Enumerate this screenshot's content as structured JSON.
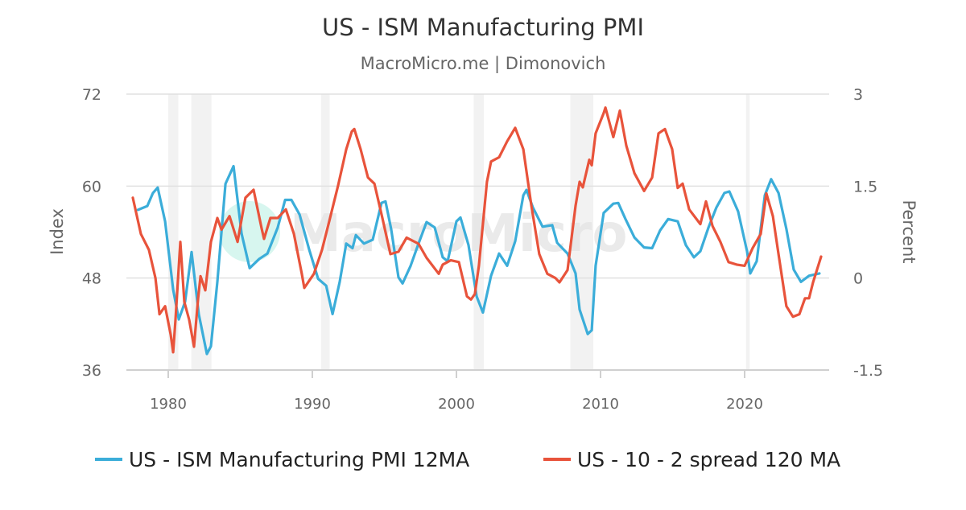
{
  "chart_data": {
    "type": "line",
    "title": "US - ISM Manufacturing PMI",
    "subtitle": "MacroMicro.me | Dimonovich",
    "watermark": "MacroMicro",
    "xlabel": "",
    "ylabel_left": "Index",
    "ylabel_right": "Percent",
    "xlim": [
      1977,
      2026.2
    ],
    "ylim_left": [
      36,
      72
    ],
    "ylim_right": [
      -1.5,
      3
    ],
    "x_ticks": [
      1980,
      1990,
      2000,
      2010,
      2020
    ],
    "y_ticks_left": [
      "36",
      "48",
      "60",
      "72"
    ],
    "y_ticks_right": [
      "-1.5",
      "0",
      "1.5",
      "3"
    ],
    "grid": true,
    "legend_position": "bottom",
    "recession_bands": [
      [
        1980.0,
        1980.7
      ],
      [
        1981.6,
        1983.0
      ],
      [
        1990.6,
        1991.2
      ],
      [
        2001.2,
        2001.9
      ],
      [
        2007.9,
        2009.5
      ],
      [
        2020.1,
        2020.35
      ]
    ],
    "series": [
      {
        "name": "US - ISM Manufacturing PMI 12MA",
        "axis": "left",
        "color": "#3badd9",
        "points": [
          [
            1977.9,
            56.9
          ],
          [
            1978.55,
            57.4
          ],
          [
            1978.94,
            59.1
          ],
          [
            1979.27,
            59.8
          ],
          [
            1979.78,
            55.4
          ],
          [
            1980.34,
            46.5
          ],
          [
            1980.73,
            42.6
          ],
          [
            1981.17,
            44.9
          ],
          [
            1981.62,
            51.4
          ],
          [
            1982.12,
            43.3
          ],
          [
            1982.68,
            38.1
          ],
          [
            1982.96,
            39.1
          ],
          [
            1983.41,
            47.5
          ],
          [
            1983.97,
            60.3
          ],
          [
            1984.53,
            62.6
          ],
          [
            1985.09,
            53.8
          ],
          [
            1985.65,
            49.3
          ],
          [
            1986.32,
            50.5
          ],
          [
            1986.88,
            51.2
          ],
          [
            1987.6,
            54.6
          ],
          [
            1988.11,
            58.2
          ],
          [
            1988.55,
            58.2
          ],
          [
            1989.11,
            56.3
          ],
          [
            1989.78,
            51.7
          ],
          [
            1990.4,
            47.9
          ],
          [
            1990.96,
            47.0
          ],
          [
            1991.4,
            43.3
          ],
          [
            1991.9,
            47.5
          ],
          [
            1992.35,
            52.5
          ],
          [
            1992.79,
            51.9
          ],
          [
            1993.02,
            53.6
          ],
          [
            1993.58,
            52.5
          ],
          [
            1994.19,
            53.0
          ],
          [
            1994.8,
            57.8
          ],
          [
            1995.08,
            58.0
          ],
          [
            1995.47,
            54.4
          ],
          [
            1995.98,
            48.1
          ],
          [
            1996.26,
            47.3
          ],
          [
            1996.82,
            49.6
          ],
          [
            1997.37,
            52.5
          ],
          [
            1997.93,
            55.3
          ],
          [
            1998.49,
            54.6
          ],
          [
            1999.05,
            50.7
          ],
          [
            1999.39,
            50.2
          ],
          [
            2000.0,
            55.4
          ],
          [
            2000.28,
            55.9
          ],
          [
            2000.84,
            52.3
          ],
          [
            2001.4,
            45.6
          ],
          [
            2001.84,
            43.5
          ],
          [
            2002.4,
            48.3
          ],
          [
            2002.96,
            51.2
          ],
          [
            2003.52,
            49.6
          ],
          [
            2004.08,
            52.8
          ],
          [
            2004.64,
            58.8
          ],
          [
            2004.86,
            59.5
          ],
          [
            2005.31,
            57.2
          ],
          [
            2005.98,
            54.7
          ],
          [
            2006.65,
            54.9
          ],
          [
            2006.99,
            52.6
          ],
          [
            2007.71,
            51.2
          ],
          [
            2008.27,
            48.6
          ],
          [
            2008.55,
            43.9
          ],
          [
            2009.11,
            40.7
          ],
          [
            2009.39,
            41.2
          ],
          [
            2009.66,
            49.6
          ],
          [
            2010.22,
            56.5
          ],
          [
            2010.89,
            57.7
          ],
          [
            2011.23,
            57.8
          ],
          [
            2011.73,
            55.7
          ],
          [
            2012.35,
            53.3
          ],
          [
            2013.02,
            52.0
          ],
          [
            2013.58,
            51.9
          ],
          [
            2014.13,
            54.2
          ],
          [
            2014.69,
            55.7
          ],
          [
            2015.36,
            55.4
          ],
          [
            2015.92,
            52.3
          ],
          [
            2016.48,
            50.7
          ],
          [
            2016.93,
            51.5
          ],
          [
            2017.49,
            54.6
          ],
          [
            2018.04,
            57.2
          ],
          [
            2018.6,
            59.1
          ],
          [
            2018.94,
            59.3
          ],
          [
            2019.55,
            56.7
          ],
          [
            2020.17,
            51.5
          ],
          [
            2020.39,
            48.6
          ],
          [
            2020.84,
            50.2
          ],
          [
            2021.4,
            58.8
          ],
          [
            2021.84,
            60.9
          ],
          [
            2022.35,
            59.1
          ],
          [
            2022.9,
            54.4
          ],
          [
            2023.41,
            49.1
          ],
          [
            2023.91,
            47.5
          ],
          [
            2024.47,
            48.3
          ],
          [
            2025.19,
            48.6
          ]
        ]
      },
      {
        "name": "US - 10 - 2 spread 120 MA",
        "axis": "right",
        "color": "#e8533b",
        "points": [
          [
            1977.54,
            1.31
          ],
          [
            1978.1,
            0.72
          ],
          [
            1978.66,
            0.46
          ],
          [
            1979.11,
            0.0
          ],
          [
            1979.39,
            -0.59
          ],
          [
            1979.78,
            -0.46
          ],
          [
            1980.17,
            -0.92
          ],
          [
            1980.34,
            -1.21
          ],
          [
            1980.5,
            -0.7
          ],
          [
            1980.84,
            0.59
          ],
          [
            1981.12,
            -0.39
          ],
          [
            1981.45,
            -0.68
          ],
          [
            1981.79,
            -1.12
          ],
          [
            1982.07,
            -0.33
          ],
          [
            1982.24,
            0.03
          ],
          [
            1982.57,
            -0.2
          ],
          [
            1982.96,
            0.59
          ],
          [
            1983.41,
            0.98
          ],
          [
            1983.69,
            0.79
          ],
          [
            1984.25,
            1.01
          ],
          [
            1984.81,
            0.59
          ],
          [
            1985.36,
            1.31
          ],
          [
            1985.92,
            1.44
          ],
          [
            1986.48,
            0.81
          ],
          [
            1986.65,
            0.64
          ],
          [
            1987.09,
            0.98
          ],
          [
            1987.6,
            0.98
          ],
          [
            1988.16,
            1.12
          ],
          [
            1988.72,
            0.72
          ],
          [
            1989.27,
            0.07
          ],
          [
            1989.44,
            -0.16
          ],
          [
            1990.11,
            0.07
          ],
          [
            1990.67,
            0.46
          ],
          [
            1991.23,
            0.98
          ],
          [
            1991.79,
            1.51
          ],
          [
            1992.35,
            2.1
          ],
          [
            1992.74,
            2.39
          ],
          [
            1992.91,
            2.43
          ],
          [
            1993.35,
            2.1
          ],
          [
            1993.86,
            1.64
          ],
          [
            1994.31,
            1.54
          ],
          [
            1994.86,
            0.98
          ],
          [
            1995.42,
            0.39
          ],
          [
            1995.98,
            0.43
          ],
          [
            1996.54,
            0.66
          ],
          [
            1997.37,
            0.56
          ],
          [
            1997.93,
            0.33
          ],
          [
            1998.77,
            0.07
          ],
          [
            1999.05,
            0.22
          ],
          [
            1999.61,
            0.29
          ],
          [
            2000.17,
            0.26
          ],
          [
            2000.73,
            -0.3
          ],
          [
            2001.01,
            -0.35
          ],
          [
            2001.28,
            -0.26
          ],
          [
            2001.56,
            0.2
          ],
          [
            2002.12,
            1.57
          ],
          [
            2002.4,
            1.9
          ],
          [
            2002.96,
            1.97
          ],
          [
            2003.52,
            2.23
          ],
          [
            2004.08,
            2.45
          ],
          [
            2004.64,
            2.1
          ],
          [
            2005.2,
            1.18
          ],
          [
            2005.75,
            0.39
          ],
          [
            2006.31,
            0.07
          ],
          [
            2006.87,
            0.0
          ],
          [
            2007.15,
            -0.07
          ],
          [
            2007.71,
            0.13
          ],
          [
            2008.27,
            1.18
          ],
          [
            2008.55,
            1.57
          ],
          [
            2008.77,
            1.48
          ],
          [
            2009.22,
            1.93
          ],
          [
            2009.39,
            1.84
          ],
          [
            2009.66,
            2.36
          ],
          [
            2010.22,
            2.69
          ],
          [
            2010.34,
            2.78
          ],
          [
            2010.89,
            2.3
          ],
          [
            2011.34,
            2.73
          ],
          [
            2011.79,
            2.16
          ],
          [
            2012.35,
            1.71
          ],
          [
            2013.02,
            1.42
          ],
          [
            2013.58,
            1.64
          ],
          [
            2014.02,
            2.36
          ],
          [
            2014.47,
            2.43
          ],
          [
            2014.97,
            2.1
          ],
          [
            2015.36,
            1.47
          ],
          [
            2015.7,
            1.54
          ],
          [
            2016.15,
            1.12
          ],
          [
            2016.93,
            0.88
          ],
          [
            2017.32,
            1.25
          ],
          [
            2017.77,
            0.85
          ],
          [
            2018.32,
            0.59
          ],
          [
            2018.88,
            0.26
          ],
          [
            2019.44,
            0.22
          ],
          [
            2020.0,
            0.2
          ],
          [
            2020.56,
            0.49
          ],
          [
            2021.12,
            0.72
          ],
          [
            2021.51,
            1.38
          ],
          [
            2021.96,
            1.01
          ],
          [
            2022.35,
            0.39
          ],
          [
            2022.9,
            -0.46
          ],
          [
            2023.35,
            -0.63
          ],
          [
            2023.8,
            -0.59
          ],
          [
            2024.19,
            -0.33
          ],
          [
            2024.47,
            -0.33
          ],
          [
            2024.75,
            -0.07
          ],
          [
            2025.31,
            0.35
          ]
        ]
      }
    ]
  }
}
